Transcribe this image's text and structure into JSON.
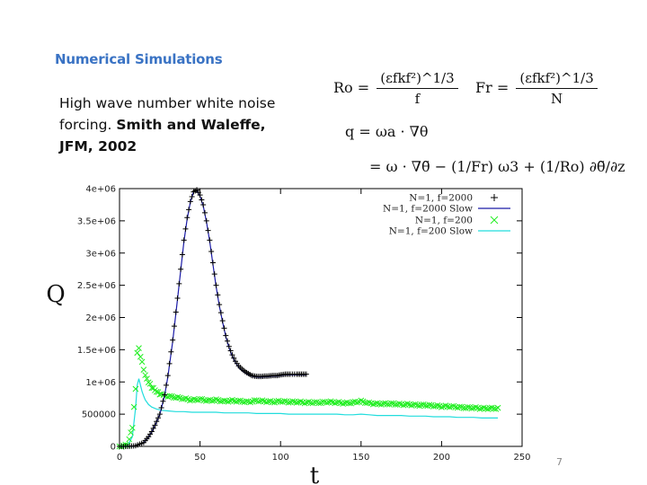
{
  "slide": {
    "title": "Numerical Simulations",
    "text_plain": "High wave number white noise forcing.",
    "text_bold": "Smith and Waleffe, JFM, 2002",
    "page_number": "7"
  },
  "equations": {
    "ro_lhs": "Ro =",
    "ro_num": "(εfkf²)^1/3",
    "ro_den": "f",
    "fr_lhs": "Fr =",
    "fr_num": "(εfkf²)^1/3",
    "fr_den": "N",
    "q_line1": "q = ωa · ∇θ",
    "q_line2": "= ω · ∇θ̃ − (1/Fr) ω3 + (1/Ro) ∂θ̃/∂z"
  },
  "chart_data": {
    "type": "line",
    "xlabel": "t",
    "ylabel": "Q",
    "xlim": [
      0,
      250
    ],
    "ylim": [
      0,
      4000000
    ],
    "x_ticks": [
      0,
      50,
      100,
      150,
      200,
      250
    ],
    "x_tick_labels": [
      "0",
      "50",
      "100",
      "150",
      "200",
      "250"
    ],
    "y_ticks": [
      0,
      500000,
      1000000,
      1500000,
      2000000,
      2500000,
      3000000,
      3500000,
      4000000
    ],
    "y_tick_labels": [
      "0",
      "500000",
      "1e+06",
      "1.5e+06",
      "2e+06",
      "2.5e+06",
      "3e+06",
      "3.5e+06",
      "4e+06"
    ],
    "legend_position": "top-right",
    "colors": {
      "black": "#000000",
      "blue": "#1a1aa8",
      "green": "#22ee22",
      "cyan": "#22dddd"
    },
    "series": [
      {
        "name": "N=1, f=2000",
        "style": "points-plus",
        "color": "#000000",
        "x": [
          0,
          5,
          10,
          15,
          18,
          20,
          22,
          25,
          28,
          30,
          33,
          36,
          38,
          40,
          42,
          44,
          46,
          48,
          50,
          52,
          54,
          56,
          58,
          60,
          62,
          64,
          66,
          68,
          70,
          72,
          74,
          76,
          78,
          80,
          82,
          84,
          86,
          88,
          90,
          92,
          95,
          98,
          100,
          103,
          106,
          110,
          113,
          116
        ],
        "y": [
          0,
          0,
          10000,
          60000,
          150000,
          230000,
          330000,
          500000,
          800000,
          1100000,
          1650000,
          2300000,
          2750000,
          3200000,
          3550000,
          3800000,
          3950000,
          3980000,
          3900000,
          3750000,
          3500000,
          3200000,
          2850000,
          2500000,
          2200000,
          1950000,
          1720000,
          1550000,
          1420000,
          1320000,
          1250000,
          1200000,
          1160000,
          1130000,
          1100000,
          1090000,
          1085000,
          1085000,
          1090000,
          1090000,
          1100000,
          1100000,
          1110000,
          1120000,
          1120000,
          1120000,
          1120000,
          1120000
        ]
      },
      {
        "name": "N=1, f=2000 Slow",
        "style": "line",
        "color": "#1a1aa8",
        "x": [
          0,
          5,
          10,
          15,
          18,
          20,
          22,
          25,
          28,
          30,
          33,
          36,
          38,
          40,
          42,
          44,
          46,
          48,
          50,
          52,
          54,
          56,
          58,
          60,
          62,
          64,
          66,
          68,
          70,
          72,
          74,
          76,
          78,
          80,
          82,
          84,
          86,
          88,
          90,
          92,
          95,
          98,
          100,
          103,
          106,
          110,
          113,
          116
        ],
        "y": [
          0,
          0,
          10000,
          55000,
          140000,
          220000,
          320000,
          490000,
          790000,
          1080000,
          1620000,
          2280000,
          2730000,
          3180000,
          3530000,
          3790000,
          3950000,
          3970000,
          3880000,
          3730000,
          3480000,
          3180000,
          2830000,
          2480000,
          2180000,
          1930000,
          1700000,
          1530000,
          1400000,
          1300000,
          1230000,
          1180000,
          1140000,
          1110000,
          1090000,
          1080000,
          1075000,
          1075000,
          1080000,
          1080000,
          1090000,
          1090000,
          1100000,
          1110000,
          1110000,
          1110000,
          1110000,
          1110000
        ]
      },
      {
        "name": "N=1, f=200",
        "style": "points-x",
        "color": "#22ee22",
        "x": [
          0,
          5,
          8,
          10,
          11,
          12,
          13,
          14,
          15,
          16,
          18,
          20,
          23,
          26,
          30,
          35,
          40,
          45,
          50,
          55,
          60,
          65,
          70,
          75,
          80,
          85,
          90,
          95,
          100,
          105,
          110,
          115,
          120,
          125,
          130,
          135,
          140,
          145,
          150,
          155,
          160,
          165,
          170,
          175,
          180,
          185,
          190,
          195,
          200,
          205,
          210,
          215,
          220,
          225,
          230,
          235
        ],
        "y": [
          0,
          20000,
          300000,
          900000,
          1450000,
          1520000,
          1400000,
          1300000,
          1200000,
          1100000,
          1000000,
          920000,
          850000,
          800000,
          780000,
          760000,
          740000,
          720000,
          730000,
          710000,
          720000,
          700000,
          710000,
          700000,
          690000,
          710000,
          700000,
          690000,
          700000,
          690000,
          690000,
          680000,
          680000,
          680000,
          690000,
          680000,
          670000,
          680000,
          700000,
          670000,
          660000,
          660000,
          660000,
          650000,
          650000,
          640000,
          640000,
          630000,
          620000,
          620000,
          610000,
          600000,
          600000,
          590000,
          590000,
          590000
        ]
      },
      {
        "name": "N=1, f=200 Slow",
        "style": "line",
        "color": "#22dddd",
        "x": [
          0,
          5,
          8,
          10,
          11,
          12,
          13,
          14,
          15,
          16,
          18,
          20,
          23,
          26,
          30,
          35,
          40,
          45,
          50,
          55,
          60,
          65,
          70,
          75,
          80,
          85,
          90,
          95,
          100,
          105,
          110,
          115,
          120,
          125,
          130,
          135,
          140,
          145,
          150,
          155,
          160,
          165,
          170,
          175,
          180,
          185,
          190,
          195,
          200,
          205,
          210,
          215,
          220,
          225,
          230,
          235
        ],
        "y": [
          0,
          10000,
          150000,
          600000,
          950000,
          1050000,
          950000,
          850000,
          780000,
          720000,
          650000,
          610000,
          580000,
          560000,
          550000,
          540000,
          540000,
          530000,
          530000,
          530000,
          530000,
          520000,
          520000,
          520000,
          520000,
          510000,
          510000,
          510000,
          510000,
          500000,
          500000,
          500000,
          500000,
          500000,
          500000,
          500000,
          490000,
          490000,
          500000,
          490000,
          480000,
          480000,
          480000,
          480000,
          470000,
          470000,
          470000,
          460000,
          460000,
          460000,
          450000,
          450000,
          450000,
          440000,
          440000,
          440000
        ]
      }
    ]
  }
}
